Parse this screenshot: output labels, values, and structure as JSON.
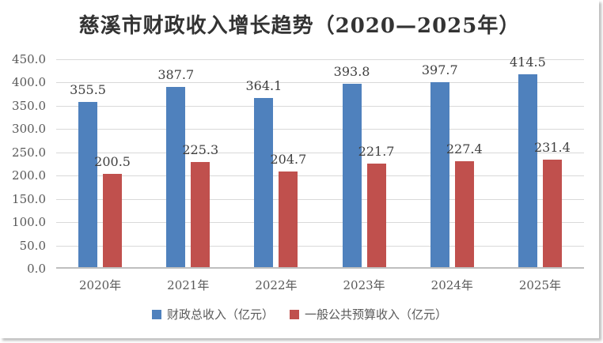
{
  "chart_data": {
    "type": "bar",
    "title": "慈溪市财政收入增长趋势（2020—2025年）",
    "categories": [
      "2020年",
      "2021年",
      "2022年",
      "2023年",
      "2024年",
      "2025年"
    ],
    "series": [
      {
        "name": "财政总收入（亿元）",
        "color": "#4F81BD",
        "values": [
          355.5,
          387.7,
          364.1,
          393.8,
          397.7,
          414.5
        ]
      },
      {
        "name": "一般公共预算收入（亿元）",
        "color": "#C0504D",
        "values": [
          200.5,
          225.3,
          204.7,
          221.7,
          227.4,
          231.4
        ]
      }
    ],
    "ylim": [
      0,
      450
    ],
    "ytick_step": 50,
    "ytick_labels": [
      "0.0",
      "50.0",
      "100.0",
      "150.0",
      "200.0",
      "250.0",
      "300.0",
      "350.0",
      "400.0",
      "450.0"
    ],
    "grid": true,
    "legend_position": "bottom",
    "xlabel": "",
    "ylabel": ""
  },
  "colors": {
    "bar_blue": "#4F81BD",
    "bar_red": "#C0504D",
    "gridline": "#D9D9D9",
    "axis_line": "#BFBFBF",
    "axis_text": "#595959",
    "data_label_text": "#404040",
    "title_text": "#333333"
  }
}
